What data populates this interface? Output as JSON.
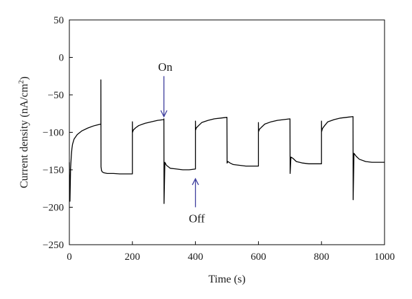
{
  "chart_data": {
    "type": "line",
    "xlabel": "Time (s)",
    "ylabel": "Current density (nA/cm",
    "ylabel_superscript": "2",
    "ylabel_suffix": ")",
    "xlim": [
      0,
      1000
    ],
    "ylim": [
      -250,
      50
    ],
    "xticks": [
      0,
      200,
      400,
      600,
      800,
      1000
    ],
    "yticks": [
      -250,
      -200,
      -150,
      -100,
      -50,
      0,
      50
    ],
    "grid": false,
    "series": [
      {
        "color": "#000000",
        "x": [
          0,
          2,
          4,
          6,
          8,
          10,
          15,
          25,
          40,
          60,
          80,
          100,
          100,
          100.5,
          102,
          105,
          110,
          120,
          140,
          160,
          180,
          200,
          200,
          200.5,
          203,
          210,
          220,
          240,
          260,
          280,
          300,
          300,
          300.5,
          303,
          308,
          320,
          340,
          360,
          380,
          400,
          400,
          400.5,
          403,
          410,
          420,
          440,
          460,
          480,
          500,
          500,
          500.5,
          503,
          510,
          520,
          540,
          560,
          580,
          600,
          600,
          600.5,
          603,
          610,
          620,
          640,
          660,
          680,
          700,
          700,
          700.5,
          703,
          710,
          720,
          740,
          760,
          780,
          800,
          800,
          800.5,
          803,
          810,
          820,
          840,
          860,
          880,
          900,
          900,
          900.5,
          903,
          910,
          920,
          940,
          960,
          980,
          1000
        ],
        "y": [
          -140,
          -192,
          -148,
          -132,
          -122,
          -116,
          -109,
          -103,
          -98,
          -94,
          -91,
          -89,
          -30,
          -146,
          -151,
          -153,
          -154,
          -155,
          -155,
          -155.5,
          -155.5,
          -155.5,
          -86,
          -100,
          -97,
          -94,
          -91,
          -88,
          -86,
          -84,
          -83,
          -82,
          -195,
          -140,
          -144,
          -148,
          -149,
          -150,
          -150,
          -149,
          -85,
          -97,
          -94,
          -91,
          -87,
          -84,
          -82,
          -81,
          -80,
          -80,
          -141,
          -139,
          -141,
          -143,
          -144,
          -145,
          -145,
          -145,
          -87,
          -99,
          -96,
          -93,
          -89,
          -86,
          -84,
          -83,
          -82,
          -82,
          -155,
          -133,
          -135,
          -139,
          -141,
          -142,
          -142,
          -142,
          -85,
          -99,
          -95,
          -91,
          -86,
          -83,
          -81,
          -80,
          -79,
          -79,
          -190,
          -128,
          -132,
          -136,
          -139,
          -140,
          -140,
          -140
        ]
      }
    ],
    "annotations": [
      {
        "text": "On",
        "arrow": "down",
        "arrow_color": "#3b3b9c",
        "x": 300,
        "y_arrow_from": -25,
        "y_arrow_to": -79
      },
      {
        "text": "Off",
        "arrow": "up",
        "arrow_color": "#3b3b9c",
        "x": 400,
        "y_arrow_from": -200,
        "y_arrow_to": -162
      }
    ]
  }
}
